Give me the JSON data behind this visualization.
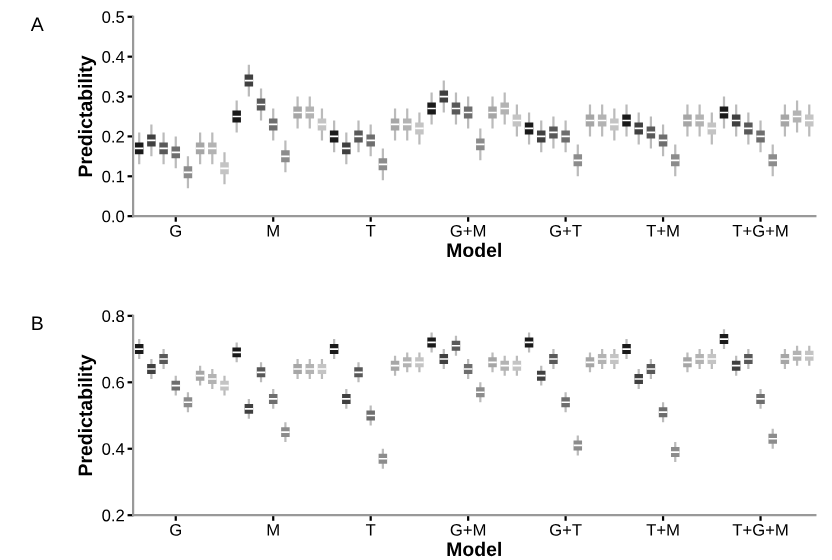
{
  "chart_data": [
    {
      "type": "box",
      "title": "A",
      "xlabel": "Model",
      "ylabel": "Predictability",
      "categories": [
        null,
        null,
        null,
        "G",
        null,
        null,
        null,
        null,
        null,
        null,
        null,
        "M",
        null,
        null,
        null,
        null,
        null,
        null,
        null,
        "T",
        null,
        null,
        null,
        null,
        null,
        null,
        null,
        "G+M",
        null,
        null,
        null,
        null,
        null,
        null,
        null,
        "G+T",
        null,
        null,
        null,
        null,
        null,
        null,
        null,
        "T+M",
        null,
        null,
        null,
        null,
        null,
        null,
        null,
        "T+G+M",
        null,
        null,
        null,
        null
      ],
      "ylim": [
        0,
        0.5
      ],
      "yticks": [
        {
          "value": 0,
          "label": "0.0"
        },
        0.1,
        0.2,
        0.3,
        0.4,
        0.5
      ],
      "grid": false,
      "legend": false,
      "colors": [
        "#1a1a1a",
        "#404040",
        "#595959",
        "#6e6e6e",
        "#8c8c8c",
        "#a6a6a6",
        "#b3b3b3",
        "#c4c4c4",
        "#1a1a1a",
        "#404040",
        "#595959",
        "#6e6e6e",
        "#8c8c8c",
        "#a6a6a6",
        "#b3b3b3",
        "#c4c4c4",
        "#1a1a1a",
        "#404040",
        "#595959",
        "#6e6e6e",
        "#8c8c8c",
        "#a6a6a6",
        "#b3b3b3",
        "#c4c4c4",
        "#1a1a1a",
        "#404040",
        "#595959",
        "#6e6e6e",
        "#8c8c8c",
        "#a6a6a6",
        "#b3b3b3",
        "#c4c4c4",
        "#1a1a1a",
        "#404040",
        "#595959",
        "#6e6e6e",
        "#8c8c8c",
        "#a6a6a6",
        "#b3b3b3",
        "#c4c4c4",
        "#1a1a1a",
        "#404040",
        "#595959",
        "#6e6e6e",
        "#8c8c8c",
        "#a6a6a6",
        "#b3b3b3",
        "#c4c4c4",
        "#1a1a1a",
        "#404040",
        "#595959",
        "#6e6e6e",
        "#8c8c8c",
        "#a6a6a6",
        "#b3b3b3",
        "#c4c4c4"
      ],
      "boxes": [
        {
          "low": 0.13,
          "q1": 0.155,
          "median": 0.17,
          "q3": 0.185,
          "high": 0.21
        },
        {
          "low": 0.15,
          "q1": 0.175,
          "median": 0.19,
          "q3": 0.205,
          "high": 0.23
        },
        {
          "low": 0.13,
          "q1": 0.155,
          "median": 0.17,
          "q3": 0.185,
          "high": 0.21
        },
        {
          "low": 0.12,
          "q1": 0.145,
          "median": 0.16,
          "q3": 0.175,
          "high": 0.2
        },
        {
          "low": 0.07,
          "q1": 0.095,
          "median": 0.11,
          "q3": 0.125,
          "high": 0.15
        },
        {
          "low": 0.13,
          "q1": 0.155,
          "median": 0.17,
          "q3": 0.185,
          "high": 0.21
        },
        {
          "low": 0.13,
          "q1": 0.155,
          "median": 0.17,
          "q3": 0.185,
          "high": 0.21
        },
        {
          "low": 0.08,
          "q1": 0.105,
          "median": 0.12,
          "q3": 0.135,
          "high": 0.16
        },
        {
          "low": 0.21,
          "q1": 0.235,
          "median": 0.25,
          "q3": 0.265,
          "high": 0.29
        },
        {
          "low": 0.3,
          "q1": 0.325,
          "median": 0.34,
          "q3": 0.355,
          "high": 0.38
        },
        {
          "low": 0.24,
          "q1": 0.265,
          "median": 0.28,
          "q3": 0.295,
          "high": 0.32
        },
        {
          "low": 0.19,
          "q1": 0.215,
          "median": 0.23,
          "q3": 0.245,
          "high": 0.27
        },
        {
          "low": 0.11,
          "q1": 0.135,
          "median": 0.15,
          "q3": 0.165,
          "high": 0.19
        },
        {
          "low": 0.22,
          "q1": 0.245,
          "median": 0.26,
          "q3": 0.275,
          "high": 0.3
        },
        {
          "low": 0.22,
          "q1": 0.245,
          "median": 0.26,
          "q3": 0.275,
          "high": 0.3
        },
        {
          "low": 0.19,
          "q1": 0.215,
          "median": 0.23,
          "q3": 0.245,
          "high": 0.27
        },
        {
          "low": 0.16,
          "q1": 0.185,
          "median": 0.2,
          "q3": 0.215,
          "high": 0.24
        },
        {
          "low": 0.13,
          "q1": 0.155,
          "median": 0.17,
          "q3": 0.185,
          "high": 0.21
        },
        {
          "low": 0.16,
          "q1": 0.185,
          "median": 0.2,
          "q3": 0.215,
          "high": 0.24
        },
        {
          "low": 0.15,
          "q1": 0.175,
          "median": 0.19,
          "q3": 0.205,
          "high": 0.23
        },
        {
          "low": 0.09,
          "q1": 0.115,
          "median": 0.13,
          "q3": 0.145,
          "high": 0.17
        },
        {
          "low": 0.19,
          "q1": 0.215,
          "median": 0.23,
          "q3": 0.245,
          "high": 0.27
        },
        {
          "low": 0.19,
          "q1": 0.215,
          "median": 0.23,
          "q3": 0.245,
          "high": 0.27
        },
        {
          "low": 0.18,
          "q1": 0.205,
          "median": 0.22,
          "q3": 0.235,
          "high": 0.26
        },
        {
          "low": 0.23,
          "q1": 0.255,
          "median": 0.27,
          "q3": 0.285,
          "high": 0.31
        },
        {
          "low": 0.26,
          "q1": 0.285,
          "median": 0.3,
          "q3": 0.315,
          "high": 0.34
        },
        {
          "low": 0.23,
          "q1": 0.255,
          "median": 0.27,
          "q3": 0.285,
          "high": 0.31
        },
        {
          "low": 0.22,
          "q1": 0.245,
          "median": 0.26,
          "q3": 0.275,
          "high": 0.3
        },
        {
          "low": 0.14,
          "q1": 0.165,
          "median": 0.18,
          "q3": 0.195,
          "high": 0.22
        },
        {
          "low": 0.22,
          "q1": 0.245,
          "median": 0.26,
          "q3": 0.275,
          "high": 0.3
        },
        {
          "low": 0.23,
          "q1": 0.255,
          "median": 0.27,
          "q3": 0.285,
          "high": 0.31
        },
        {
          "low": 0.2,
          "q1": 0.225,
          "median": 0.24,
          "q3": 0.255,
          "high": 0.28
        },
        {
          "low": 0.18,
          "q1": 0.205,
          "median": 0.22,
          "q3": 0.235,
          "high": 0.26
        },
        {
          "low": 0.16,
          "q1": 0.185,
          "median": 0.2,
          "q3": 0.215,
          "high": 0.24
        },
        {
          "low": 0.17,
          "q1": 0.195,
          "median": 0.21,
          "q3": 0.225,
          "high": 0.25
        },
        {
          "low": 0.16,
          "q1": 0.185,
          "median": 0.2,
          "q3": 0.215,
          "high": 0.24
        },
        {
          "low": 0.1,
          "q1": 0.125,
          "median": 0.14,
          "q3": 0.155,
          "high": 0.18
        },
        {
          "low": 0.2,
          "q1": 0.225,
          "median": 0.24,
          "q3": 0.255,
          "high": 0.28
        },
        {
          "low": 0.2,
          "q1": 0.225,
          "median": 0.24,
          "q3": 0.255,
          "high": 0.28
        },
        {
          "low": 0.19,
          "q1": 0.215,
          "median": 0.23,
          "q3": 0.245,
          "high": 0.27
        },
        {
          "low": 0.2,
          "q1": 0.225,
          "median": 0.24,
          "q3": 0.255,
          "high": 0.28
        },
        {
          "low": 0.18,
          "q1": 0.205,
          "median": 0.22,
          "q3": 0.235,
          "high": 0.26
        },
        {
          "low": 0.17,
          "q1": 0.195,
          "median": 0.21,
          "q3": 0.225,
          "high": 0.25
        },
        {
          "low": 0.15,
          "q1": 0.175,
          "median": 0.19,
          "q3": 0.205,
          "high": 0.23
        },
        {
          "low": 0.1,
          "q1": 0.125,
          "median": 0.14,
          "q3": 0.155,
          "high": 0.18
        },
        {
          "low": 0.2,
          "q1": 0.225,
          "median": 0.24,
          "q3": 0.255,
          "high": 0.28
        },
        {
          "low": 0.2,
          "q1": 0.225,
          "median": 0.24,
          "q3": 0.255,
          "high": 0.28
        },
        {
          "low": 0.18,
          "q1": 0.205,
          "median": 0.22,
          "q3": 0.235,
          "high": 0.26
        },
        {
          "low": 0.22,
          "q1": 0.245,
          "median": 0.26,
          "q3": 0.275,
          "high": 0.3
        },
        {
          "low": 0.2,
          "q1": 0.225,
          "median": 0.24,
          "q3": 0.255,
          "high": 0.28
        },
        {
          "low": 0.18,
          "q1": 0.205,
          "median": 0.22,
          "q3": 0.235,
          "high": 0.26
        },
        {
          "low": 0.16,
          "q1": 0.185,
          "median": 0.2,
          "q3": 0.215,
          "high": 0.24
        },
        {
          "low": 0.1,
          "q1": 0.125,
          "median": 0.14,
          "q3": 0.155,
          "high": 0.18
        },
        {
          "low": 0.2,
          "q1": 0.225,
          "median": 0.24,
          "q3": 0.255,
          "high": 0.28
        },
        {
          "low": 0.21,
          "q1": 0.235,
          "median": 0.25,
          "q3": 0.265,
          "high": 0.29
        },
        {
          "low": 0.2,
          "q1": 0.225,
          "median": 0.24,
          "q3": 0.255,
          "high": 0.28
        }
      ]
    },
    {
      "type": "box",
      "title": "B",
      "xlabel": "Model",
      "ylabel": "Predictability",
      "categories": [
        null,
        null,
        null,
        "G",
        null,
        null,
        null,
        null,
        null,
        null,
        null,
        "M",
        null,
        null,
        null,
        null,
        null,
        null,
        null,
        "T",
        null,
        null,
        null,
        null,
        null,
        null,
        null,
        "G+M",
        null,
        null,
        null,
        null,
        null,
        null,
        null,
        "G+T",
        null,
        null,
        null,
        null,
        null,
        null,
        null,
        "T+M",
        null,
        null,
        null,
        null,
        null,
        null,
        null,
        "T+G+M",
        null,
        null,
        null,
        null
      ],
      "ylim": [
        0.2,
        0.8
      ],
      "yticks": [
        0.2,
        0.4,
        0.6,
        0.8
      ],
      "grid": false,
      "legend": false,
      "colors": [
        "#1a1a1a",
        "#404040",
        "#595959",
        "#6e6e6e",
        "#8c8c8c",
        "#a6a6a6",
        "#b3b3b3",
        "#c4c4c4",
        "#1a1a1a",
        "#404040",
        "#595959",
        "#6e6e6e",
        "#8c8c8c",
        "#a6a6a6",
        "#b3b3b3",
        "#c4c4c4",
        "#1a1a1a",
        "#404040",
        "#595959",
        "#6e6e6e",
        "#8c8c8c",
        "#a6a6a6",
        "#b3b3b3",
        "#c4c4c4",
        "#1a1a1a",
        "#404040",
        "#595959",
        "#6e6e6e",
        "#8c8c8c",
        "#a6a6a6",
        "#b3b3b3",
        "#c4c4c4",
        "#1a1a1a",
        "#404040",
        "#595959",
        "#6e6e6e",
        "#8c8c8c",
        "#a6a6a6",
        "#b3b3b3",
        "#c4c4c4",
        "#1a1a1a",
        "#404040",
        "#595959",
        "#6e6e6e",
        "#8c8c8c",
        "#a6a6a6",
        "#b3b3b3",
        "#c4c4c4",
        "#1a1a1a",
        "#404040",
        "#595959",
        "#6e6e6e",
        "#8c8c8c",
        "#a6a6a6",
        "#b3b3b3",
        "#c4c4c4"
      ],
      "boxes": [
        {
          "low": 0.67,
          "q1": 0.685,
          "median": 0.7,
          "q3": 0.715,
          "high": 0.73
        },
        {
          "low": 0.61,
          "q1": 0.625,
          "median": 0.64,
          "q3": 0.655,
          "high": 0.67
        },
        {
          "low": 0.64,
          "q1": 0.655,
          "median": 0.67,
          "q3": 0.685,
          "high": 0.7
        },
        {
          "low": 0.56,
          "q1": 0.575,
          "median": 0.59,
          "q3": 0.605,
          "high": 0.62
        },
        {
          "low": 0.51,
          "q1": 0.525,
          "median": 0.54,
          "q3": 0.555,
          "high": 0.57
        },
        {
          "low": 0.59,
          "q1": 0.605,
          "median": 0.62,
          "q3": 0.635,
          "high": 0.65
        },
        {
          "low": 0.58,
          "q1": 0.595,
          "median": 0.61,
          "q3": 0.625,
          "high": 0.64
        },
        {
          "low": 0.56,
          "q1": 0.575,
          "median": 0.59,
          "q3": 0.605,
          "high": 0.62
        },
        {
          "low": 0.66,
          "q1": 0.675,
          "median": 0.69,
          "q3": 0.705,
          "high": 0.72
        },
        {
          "low": 0.49,
          "q1": 0.505,
          "median": 0.52,
          "q3": 0.535,
          "high": 0.55
        },
        {
          "low": 0.6,
          "q1": 0.615,
          "median": 0.63,
          "q3": 0.645,
          "high": 0.66
        },
        {
          "low": 0.52,
          "q1": 0.535,
          "median": 0.55,
          "q3": 0.565,
          "high": 0.58
        },
        {
          "low": 0.42,
          "q1": 0.435,
          "median": 0.45,
          "q3": 0.465,
          "high": 0.48
        },
        {
          "low": 0.61,
          "q1": 0.625,
          "median": 0.64,
          "q3": 0.655,
          "high": 0.67
        },
        {
          "low": 0.61,
          "q1": 0.625,
          "median": 0.64,
          "q3": 0.655,
          "high": 0.67
        },
        {
          "low": 0.61,
          "q1": 0.625,
          "median": 0.64,
          "q3": 0.655,
          "high": 0.67
        },
        {
          "low": 0.67,
          "q1": 0.685,
          "median": 0.7,
          "q3": 0.715,
          "high": 0.73
        },
        {
          "low": 0.52,
          "q1": 0.535,
          "median": 0.55,
          "q3": 0.565,
          "high": 0.58
        },
        {
          "low": 0.6,
          "q1": 0.615,
          "median": 0.63,
          "q3": 0.645,
          "high": 0.66
        },
        {
          "low": 0.47,
          "q1": 0.485,
          "median": 0.5,
          "q3": 0.515,
          "high": 0.53
        },
        {
          "low": 0.34,
          "q1": 0.355,
          "median": 0.37,
          "q3": 0.385,
          "high": 0.4
        },
        {
          "low": 0.62,
          "q1": 0.635,
          "median": 0.65,
          "q3": 0.665,
          "high": 0.68
        },
        {
          "low": 0.63,
          "q1": 0.645,
          "median": 0.66,
          "q3": 0.675,
          "high": 0.69
        },
        {
          "low": 0.63,
          "q1": 0.645,
          "median": 0.66,
          "q3": 0.675,
          "high": 0.69
        },
        {
          "low": 0.69,
          "q1": 0.705,
          "median": 0.72,
          "q3": 0.735,
          "high": 0.75
        },
        {
          "low": 0.64,
          "q1": 0.655,
          "median": 0.67,
          "q3": 0.685,
          "high": 0.7
        },
        {
          "low": 0.68,
          "q1": 0.695,
          "median": 0.71,
          "q3": 0.725,
          "high": 0.74
        },
        {
          "low": 0.61,
          "q1": 0.625,
          "median": 0.64,
          "q3": 0.655,
          "high": 0.67
        },
        {
          "low": 0.54,
          "q1": 0.555,
          "median": 0.57,
          "q3": 0.585,
          "high": 0.6
        },
        {
          "low": 0.63,
          "q1": 0.645,
          "median": 0.66,
          "q3": 0.675,
          "high": 0.69
        },
        {
          "low": 0.62,
          "q1": 0.635,
          "median": 0.65,
          "q3": 0.665,
          "high": 0.68
        },
        {
          "low": 0.62,
          "q1": 0.635,
          "median": 0.65,
          "q3": 0.665,
          "high": 0.68
        },
        {
          "low": 0.69,
          "q1": 0.705,
          "median": 0.72,
          "q3": 0.735,
          "high": 0.75
        },
        {
          "low": 0.59,
          "q1": 0.605,
          "median": 0.62,
          "q3": 0.635,
          "high": 0.65
        },
        {
          "low": 0.64,
          "q1": 0.655,
          "median": 0.67,
          "q3": 0.685,
          "high": 0.7
        },
        {
          "low": 0.51,
          "q1": 0.525,
          "median": 0.54,
          "q3": 0.555,
          "high": 0.57
        },
        {
          "low": 0.38,
          "q1": 0.395,
          "median": 0.41,
          "q3": 0.425,
          "high": 0.44
        },
        {
          "low": 0.63,
          "q1": 0.645,
          "median": 0.66,
          "q3": 0.675,
          "high": 0.69
        },
        {
          "low": 0.64,
          "q1": 0.655,
          "median": 0.67,
          "q3": 0.685,
          "high": 0.7
        },
        {
          "low": 0.64,
          "q1": 0.655,
          "median": 0.67,
          "q3": 0.685,
          "high": 0.7
        },
        {
          "low": 0.67,
          "q1": 0.685,
          "median": 0.7,
          "q3": 0.715,
          "high": 0.73
        },
        {
          "low": 0.58,
          "q1": 0.595,
          "median": 0.61,
          "q3": 0.625,
          "high": 0.64
        },
        {
          "low": 0.61,
          "q1": 0.625,
          "median": 0.64,
          "q3": 0.655,
          "high": 0.67
        },
        {
          "low": 0.48,
          "q1": 0.495,
          "median": 0.51,
          "q3": 0.525,
          "high": 0.54
        },
        {
          "low": 0.36,
          "q1": 0.375,
          "median": 0.39,
          "q3": 0.405,
          "high": 0.42
        },
        {
          "low": 0.63,
          "q1": 0.645,
          "median": 0.66,
          "q3": 0.675,
          "high": 0.69
        },
        {
          "low": 0.64,
          "q1": 0.655,
          "median": 0.67,
          "q3": 0.685,
          "high": 0.7
        },
        {
          "low": 0.64,
          "q1": 0.655,
          "median": 0.67,
          "q3": 0.685,
          "high": 0.7
        },
        {
          "low": 0.7,
          "q1": 0.715,
          "median": 0.73,
          "q3": 0.745,
          "high": 0.76
        },
        {
          "low": 0.62,
          "q1": 0.635,
          "median": 0.65,
          "q3": 0.665,
          "high": 0.68
        },
        {
          "low": 0.64,
          "q1": 0.655,
          "median": 0.67,
          "q3": 0.685,
          "high": 0.7
        },
        {
          "low": 0.52,
          "q1": 0.535,
          "median": 0.55,
          "q3": 0.565,
          "high": 0.58
        },
        {
          "low": 0.4,
          "q1": 0.415,
          "median": 0.43,
          "q3": 0.445,
          "high": 0.46
        },
        {
          "low": 0.64,
          "q1": 0.655,
          "median": 0.67,
          "q3": 0.685,
          "high": 0.7
        },
        {
          "low": 0.65,
          "q1": 0.665,
          "median": 0.68,
          "q3": 0.695,
          "high": 0.71
        },
        {
          "low": 0.65,
          "q1": 0.665,
          "median": 0.68,
          "q3": 0.695,
          "high": 0.71
        }
      ]
    }
  ]
}
